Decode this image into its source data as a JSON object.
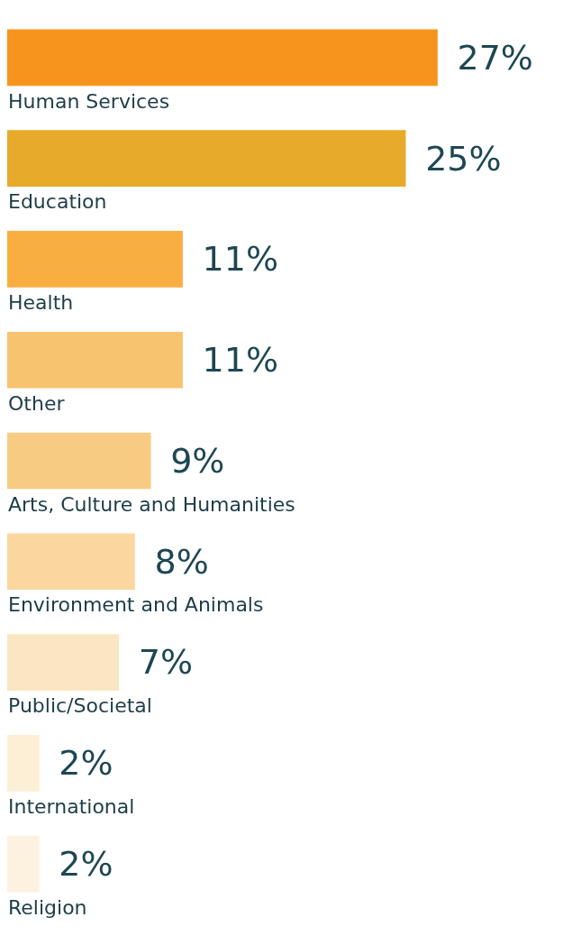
{
  "chart_data": {
    "type": "bar",
    "orientation": "horizontal",
    "value_labels": [
      "27%",
      "25%",
      "11%",
      "11%",
      "9%",
      "8%",
      "7%",
      "2%",
      "2%"
    ],
    "categories": [
      "Human Services",
      "Education",
      "Health",
      "Other",
      "Arts, Culture and Humanities",
      "Environment and Animals",
      "Public/Societal",
      "International",
      "Religion"
    ],
    "values": [
      27,
      25,
      11,
      11,
      9,
      8,
      7,
      2,
      2
    ],
    "colors": [
      "#f7941d",
      "#e8aa2a",
      "#f9ae42",
      "#f8c36e",
      "#f8cb83",
      "#fad79e",
      "#fae6c3",
      "#fcefd6",
      "#fcf2df"
    ]
  }
}
